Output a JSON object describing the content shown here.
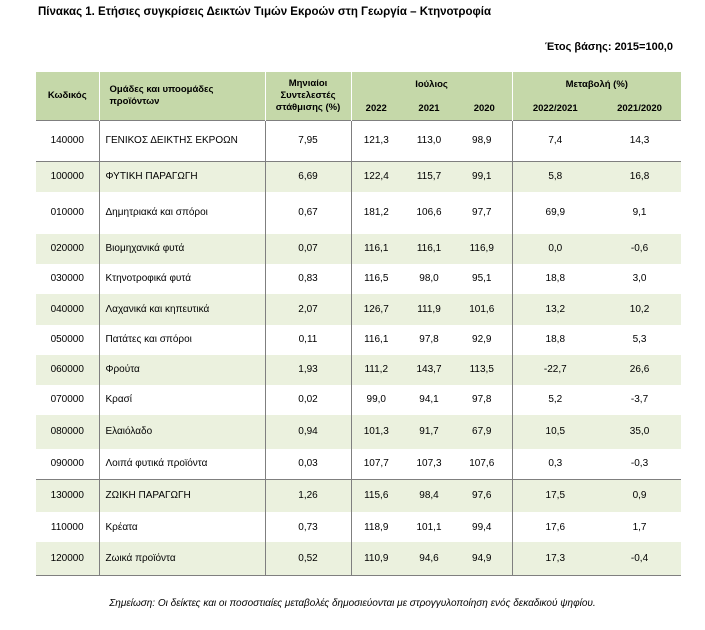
{
  "title": "Πίνακας 1. Ετήσιες συγκρίσεις Δεικτών Τιμών Εκροών στη Γεωργία – Κτηνοτροφία",
  "base_year_note": "Έτος βάσης: 2015=100,0",
  "header": {
    "code": "Κωδικός",
    "group": "Ομάδες και υποομάδες προϊόντων",
    "weights": "Μηνιαίοι Συντελεστές στάθμισης (%)",
    "month": "Ιούλιος",
    "change": "Μεταβολή (%)",
    "years": [
      "2022",
      "2021",
      "2020"
    ],
    "change_periods": [
      "2022/2021",
      "2021/2020"
    ]
  },
  "rows": [
    {
      "code": "140000",
      "name": "ΓΕΝΙΚΟΣ ΔΕΙΚΤΗΣ ΕΚΡΟΩΝ",
      "weight": "7,95",
      "y2022": "121,3",
      "y2021": "113,0",
      "y2020": "98,9",
      "c1": "7,4",
      "c2": "14,3"
    },
    {
      "code": "100000",
      "name": "ΦΥΤΙΚΗ ΠΑΡΑΓΩΓΗ",
      "weight": "6,69",
      "y2022": "122,4",
      "y2021": "115,7",
      "y2020": "99,1",
      "c1": "5,8",
      "c2": "16,8"
    },
    {
      "code": "010000",
      "name": "Δημητριακά και σπόροι",
      "weight": "0,67",
      "y2022": "181,2",
      "y2021": "106,6",
      "y2020": "97,7",
      "c1": "69,9",
      "c2": "9,1"
    },
    {
      "code": "020000",
      "name": "Βιομηχανικά φυτά",
      "weight": "0,07",
      "y2022": "116,1",
      "y2021": "116,1",
      "y2020": "116,9",
      "c1": "0,0",
      "c2": "-0,6"
    },
    {
      "code": "030000",
      "name": "Κτηνοτροφικά φυτά",
      "weight": "0,83",
      "y2022": "116,5",
      "y2021": "98,0",
      "y2020": "95,1",
      "c1": "18,8",
      "c2": "3,0"
    },
    {
      "code": "040000",
      "name": "Λαχανικά και κηπευτικά",
      "weight": "2,07",
      "y2022": "126,7",
      "y2021": "111,9",
      "y2020": "101,6",
      "c1": "13,2",
      "c2": "10,2"
    },
    {
      "code": "050000",
      "name": "Πατάτες και σπόροι",
      "weight": "0,11",
      "y2022": "116,1",
      "y2021": "97,8",
      "y2020": "92,9",
      "c1": "18,8",
      "c2": "5,3"
    },
    {
      "code": "060000",
      "name": "Φρούτα",
      "weight": "1,93",
      "y2022": "111,2",
      "y2021": "143,7",
      "y2020": "113,5",
      "c1": "-22,7",
      "c2": "26,6"
    },
    {
      "code": "070000",
      "name": "Κρασί",
      "weight": "0,02",
      "y2022": "99,0",
      "y2021": "94,1",
      "y2020": "97,8",
      "c1": "5,2",
      "c2": "-3,7"
    },
    {
      "code": "080000",
      "name": "Ελαιόλαδο",
      "weight": "0,94",
      "y2022": "101,3",
      "y2021": "91,7",
      "y2020": "67,9",
      "c1": "10,5",
      "c2": "35,0"
    },
    {
      "code": "090000",
      "name": "Λοιπά φυτικά προϊόντα",
      "weight": "0,03",
      "y2022": "107,7",
      "y2021": "107,3",
      "y2020": "107,6",
      "c1": "0,3",
      "c2": "-0,3"
    },
    {
      "code": "130000",
      "name": "ΖΩΙΚΗ ΠΑΡΑΓΩΓΗ",
      "weight": "1,26",
      "y2022": "115,6",
      "y2021": "98,4",
      "y2020": "97,6",
      "c1": "17,5",
      "c2": "0,9"
    },
    {
      "code": "110000",
      "name": "Κρέατα",
      "weight": "0,73",
      "y2022": "118,9",
      "y2021": "101,1",
      "y2020": "99,4",
      "c1": "17,6",
      "c2": "1,7"
    },
    {
      "code": "120000",
      "name": "Ζωικά προϊόντα",
      "weight": "0,52",
      "y2022": "110,9",
      "y2021": "94,6",
      "y2020": "94,9",
      "c1": "17,3",
      "c2": "-0,4"
    }
  ],
  "footnote": "Σημείωση: Οι δείκτες και οι ποσοστιαίες μεταβολές δημοσιεύονται με στρογγυλοποίηση ενός δεκαδικού ψηφίου."
}
